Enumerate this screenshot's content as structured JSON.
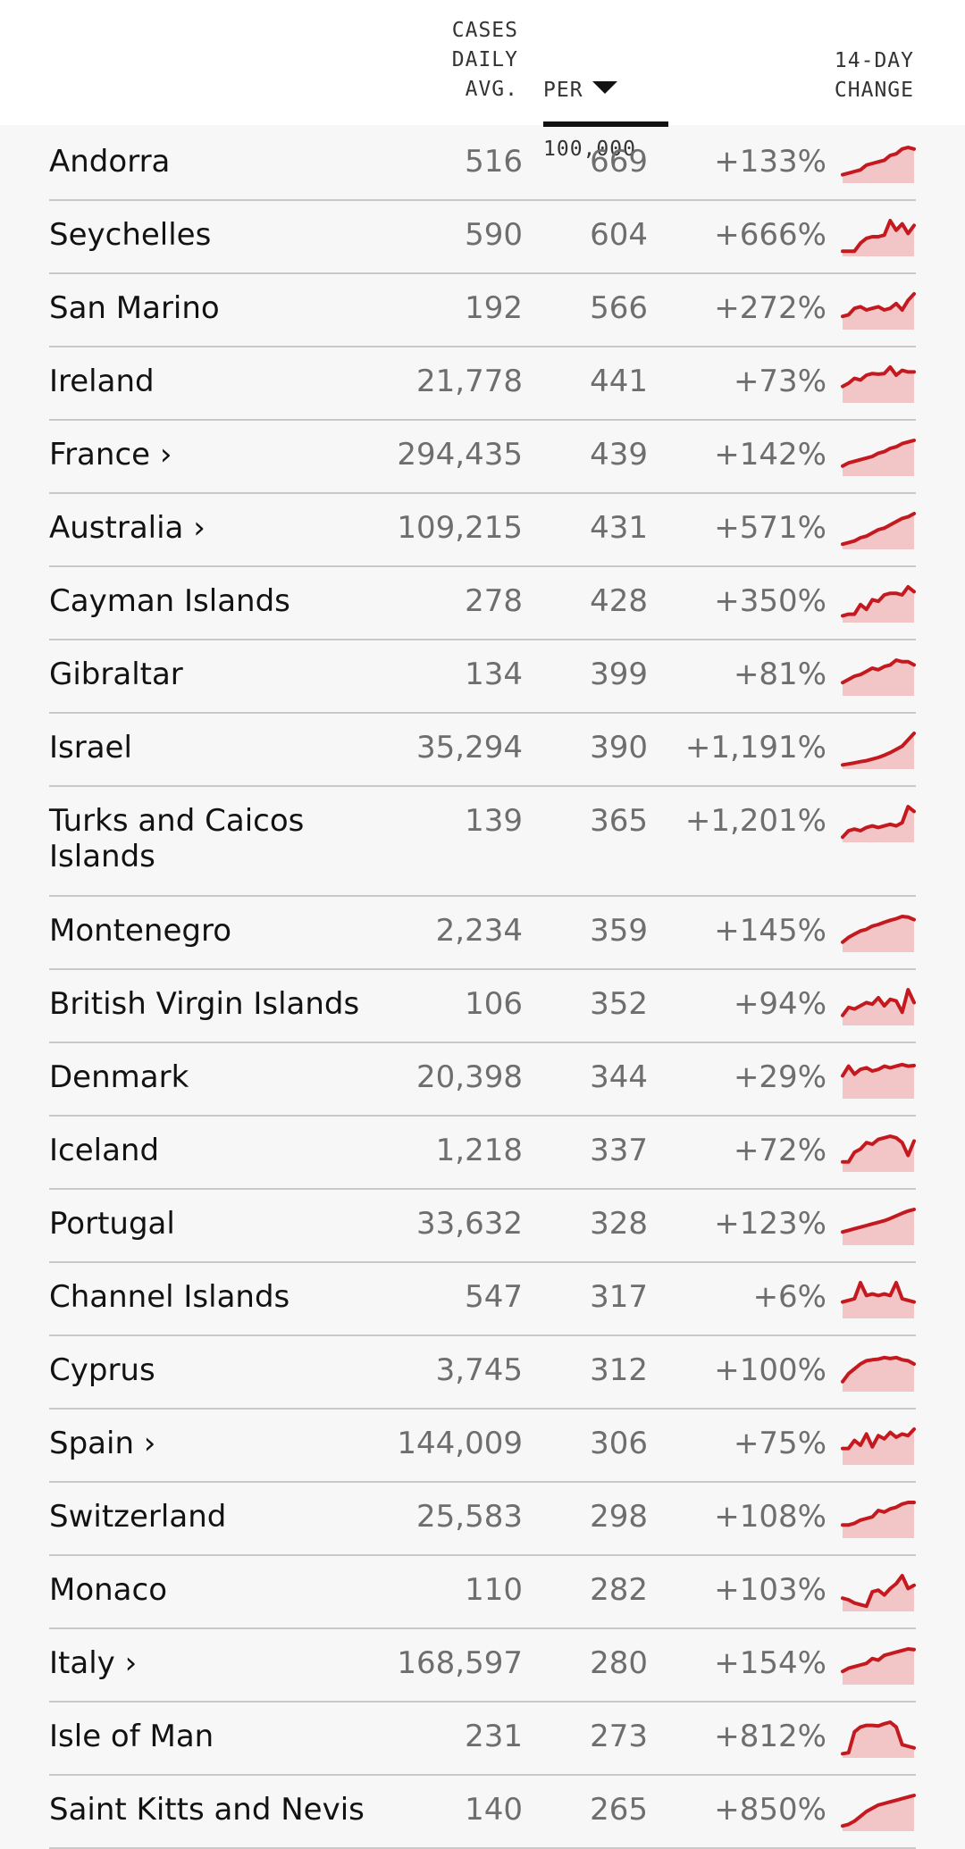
{
  "header": {
    "cases_label": "CASES\nDAILY\nAVG.",
    "per_label": "PER",
    "per_label_2": "100,000",
    "change_label": "14-DAY\nCHANGE"
  },
  "colors": {
    "spark_line": "#c41a1f",
    "spark_fill": "#f2c5c7"
  },
  "rows": [
    {
      "country": "Andorra",
      "cases": "516",
      "per": "669",
      "change": "+133%",
      "trend": [
        0.15,
        0.2,
        0.25,
        0.3,
        0.45,
        0.5,
        0.55,
        0.6,
        0.75,
        0.8,
        0.95,
        1,
        0.95
      ]
    },
    {
      "country": "Seychelles",
      "cases": "590",
      "per": "604",
      "change": "+666%",
      "trend": [
        0.05,
        0.05,
        0.05,
        0.3,
        0.45,
        0.5,
        0.5,
        0.55,
        1,
        0.7,
        0.9,
        0.6,
        0.85
      ]
    },
    {
      "country": "San Marino",
      "cases": "192",
      "per": "566",
      "change": "+272%",
      "trend": [
        0.3,
        0.35,
        0.55,
        0.6,
        0.5,
        0.55,
        0.6,
        0.5,
        0.55,
        0.7,
        0.5,
        0.8,
        1
      ]
    },
    {
      "country": "Ireland",
      "cases": "21,778",
      "per": "441",
      "change": "+73%",
      "trend": [
        0.4,
        0.5,
        0.65,
        0.6,
        0.75,
        0.8,
        0.78,
        0.8,
        1,
        0.75,
        0.9,
        0.85,
        0.85
      ]
    },
    {
      "country": "France ›",
      "cases": "294,435",
      "per": "439",
      "change": "+142%",
      "trend": [
        0.2,
        0.3,
        0.35,
        0.4,
        0.45,
        0.5,
        0.6,
        0.65,
        0.75,
        0.8,
        0.9,
        0.95,
        1
      ]
    },
    {
      "country": "Australia ›",
      "cases": "109,215",
      "per": "431",
      "change": "+571%",
      "trend": [
        0.05,
        0.1,
        0.15,
        0.25,
        0.3,
        0.4,
        0.5,
        0.55,
        0.65,
        0.75,
        0.85,
        0.9,
        1
      ]
    },
    {
      "country": "Cayman Islands",
      "cases": "278",
      "per": "428",
      "change": "+350%",
      "trend": [
        0.1,
        0.15,
        0.15,
        0.45,
        0.3,
        0.6,
        0.55,
        0.75,
        0.8,
        0.8,
        0.75,
        1,
        0.85
      ]
    },
    {
      "country": "Gibraltar",
      "cases": "134",
      "per": "399",
      "change": "+81%",
      "trend": [
        0.3,
        0.4,
        0.5,
        0.55,
        0.65,
        0.75,
        0.7,
        0.8,
        0.85,
        1,
        0.95,
        0.95,
        0.85
      ]
    },
    {
      "country": "Israel",
      "cases": "35,294",
      "per": "390",
      "change": "+1,191%",
      "trend": [
        0.02,
        0.05,
        0.08,
        0.12,
        0.15,
        0.2,
        0.25,
        0.32,
        0.4,
        0.5,
        0.6,
        0.8,
        1
      ]
    },
    {
      "country": "Turks and Caicos\nIslands",
      "cases": "139",
      "per": "365",
      "change": "+1,201%",
      "tall": true,
      "trend": [
        0.05,
        0.25,
        0.3,
        0.25,
        0.35,
        0.4,
        0.35,
        0.4,
        0.45,
        0.4,
        0.5,
        1,
        0.85
      ]
    },
    {
      "country": "Montenegro",
      "cases": "2,234",
      "per": "359",
      "change": "+145%",
      "trend": [
        0.2,
        0.35,
        0.45,
        0.55,
        0.6,
        0.7,
        0.75,
        0.82,
        0.88,
        0.93,
        1,
        0.98,
        0.9
      ]
    },
    {
      "country": "British Virgin Islands",
      "cases": "106",
      "per": "352",
      "change": "+94%",
      "trend": [
        0.2,
        0.45,
        0.4,
        0.5,
        0.6,
        0.55,
        0.75,
        0.5,
        0.7,
        0.65,
        0.3,
        1,
        0.6
      ]
    },
    {
      "country": "Denmark",
      "cases": "20,398",
      "per": "344",
      "change": "+29%",
      "trend": [
        0.6,
        0.9,
        0.65,
        0.8,
        0.85,
        0.75,
        0.8,
        0.9,
        0.85,
        0.9,
        0.95,
        0.9,
        0.92
      ]
    },
    {
      "country": "Iceland",
      "cases": "1,218",
      "per": "337",
      "change": "+72%",
      "trend": [
        0.2,
        0.2,
        0.5,
        0.6,
        0.8,
        0.75,
        0.9,
        0.95,
        1,
        0.95,
        0.8,
        0.4,
        0.85
      ]
    },
    {
      "country": "Portugal",
      "cases": "33,632",
      "per": "328",
      "change": "+123%",
      "trend": [
        0.3,
        0.35,
        0.4,
        0.45,
        0.5,
        0.55,
        0.6,
        0.65,
        0.72,
        0.8,
        0.88,
        0.95,
        1
      ]
    },
    {
      "country": "Channel Islands",
      "cases": "547",
      "per": "317",
      "change": "+6%",
      "trend": [
        0.4,
        0.45,
        0.5,
        1,
        0.6,
        0.65,
        0.6,
        0.65,
        0.6,
        1,
        0.5,
        0.45,
        0.4
      ]
    },
    {
      "country": "Cyprus",
      "cases": "3,745",
      "per": "312",
      "change": "+100%",
      "trend": [
        0.2,
        0.45,
        0.6,
        0.75,
        0.85,
        0.88,
        0.9,
        0.95,
        0.92,
        0.95,
        0.88,
        0.85,
        0.75
      ]
    },
    {
      "country": "Spain ›",
      "cases": "144,009",
      "per": "306",
      "change": "+75%",
      "trend": [
        0.4,
        0.4,
        0.65,
        0.5,
        0.85,
        0.45,
        0.8,
        0.7,
        0.9,
        0.75,
        0.85,
        0.8,
        1
      ]
    },
    {
      "country": "Switzerland",
      "cases": "25,583",
      "per": "298",
      "change": "+108%",
      "trend": [
        0.3,
        0.3,
        0.35,
        0.45,
        0.5,
        0.55,
        0.75,
        0.7,
        0.8,
        0.85,
        0.95,
        1,
        1
      ]
    },
    {
      "country": "Monaco",
      "cases": "110",
      "per": "282",
      "change": "+103%",
      "trend": [
        0.3,
        0.25,
        0.15,
        0.1,
        0.05,
        0.5,
        0.55,
        0.4,
        0.6,
        0.75,
        1,
        0.6,
        0.7
      ]
    },
    {
      "country": "Italy ›",
      "cases": "168,597",
      "per": "280",
      "change": "+154%",
      "trend": [
        0.3,
        0.4,
        0.45,
        0.5,
        0.55,
        0.7,
        0.65,
        0.8,
        0.85,
        0.9,
        0.95,
        1,
        0.98
      ]
    },
    {
      "country": "Isle of Man",
      "cases": "231",
      "per": "273",
      "change": "+812%",
      "trend": [
        0.02,
        0.05,
        0.7,
        0.85,
        0.9,
        0.9,
        0.88,
        0.95,
        1,
        0.85,
        0.3,
        0.25,
        0.2
      ]
    },
    {
      "country": "Saint Kitts and Nevis",
      "cases": "140",
      "per": "265",
      "change": "+850%",
      "trend": [
        0.05,
        0.1,
        0.2,
        0.35,
        0.5,
        0.6,
        0.7,
        0.75,
        0.8,
        0.85,
        0.9,
        0.95,
        1
      ]
    }
  ]
}
